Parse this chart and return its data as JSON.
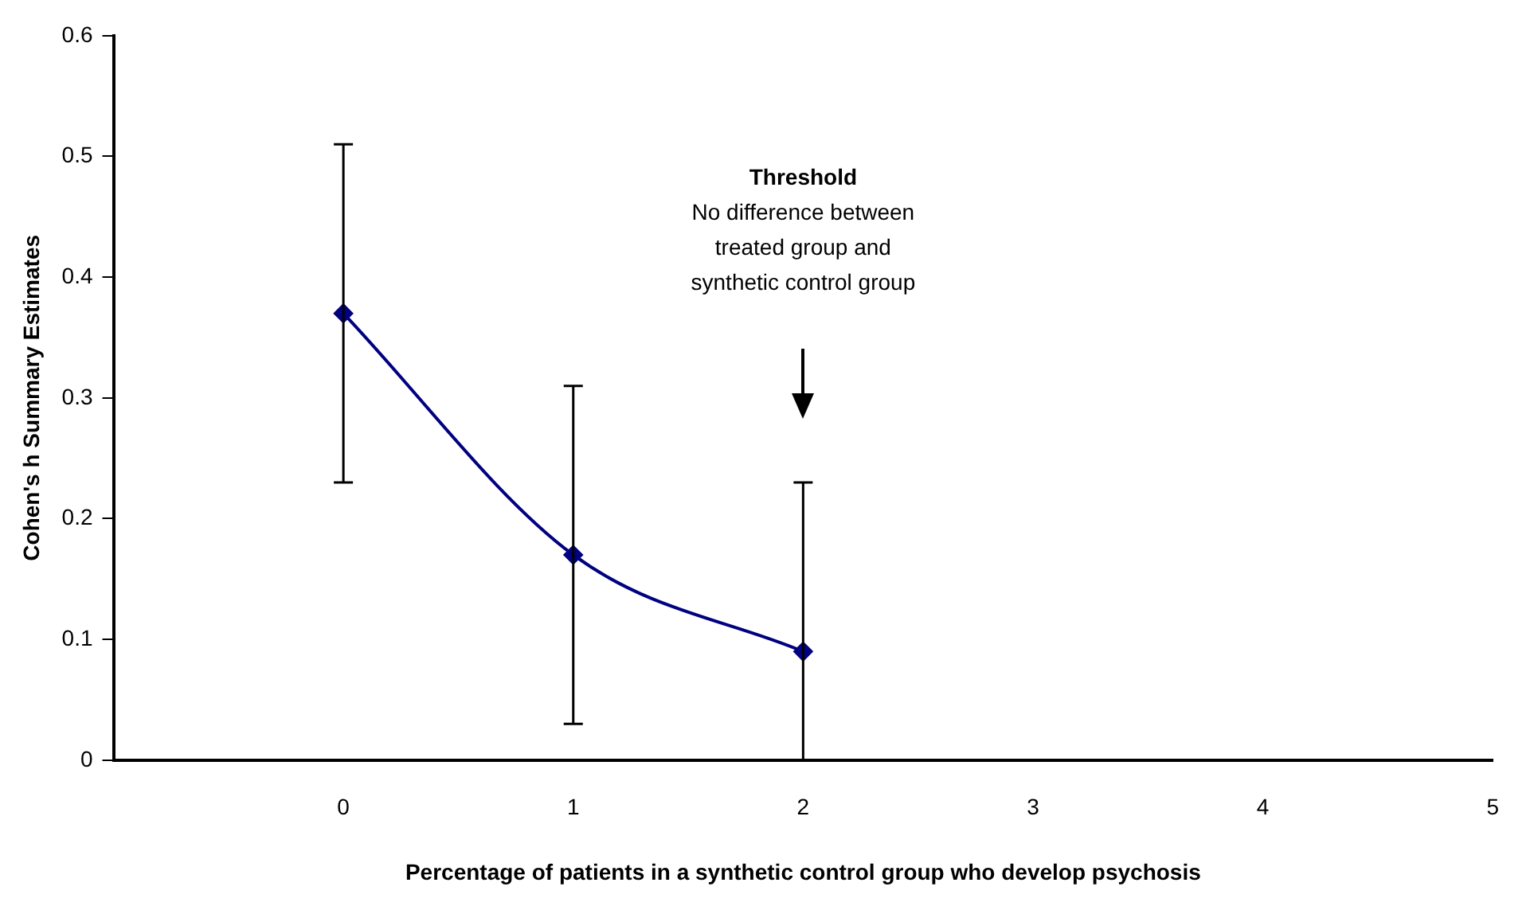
{
  "chart_data": {
    "type": "line",
    "xlabel": "Percentage of patients in a synthetic control group who develop psychosis",
    "ylabel": "Cohen's h Summary Estimates",
    "x": [
      0,
      1,
      2
    ],
    "series": [
      {
        "color": "#000080",
        "values": [
          0.37,
          0.17,
          0.09
        ],
        "errors": [
          [
            0.23,
            0.51
          ],
          [
            0.03,
            0.31
          ],
          [
            0,
            0.23
          ]
        ]
      }
    ],
    "xlim": [
      -1,
      5
    ],
    "xticks": [
      0,
      1,
      2,
      3,
      4,
      5
    ],
    "ylim": [
      0,
      0.6
    ],
    "yticks": [
      0,
      0.1,
      0.2,
      0.3,
      0.4,
      0.5,
      0.6
    ],
    "grid": false,
    "legend": false,
    "marker": "diamond",
    "line_style": "solid",
    "annotations": [
      "Threshold",
      "No difference between treated group and synthetic control group"
    ]
  }
}
